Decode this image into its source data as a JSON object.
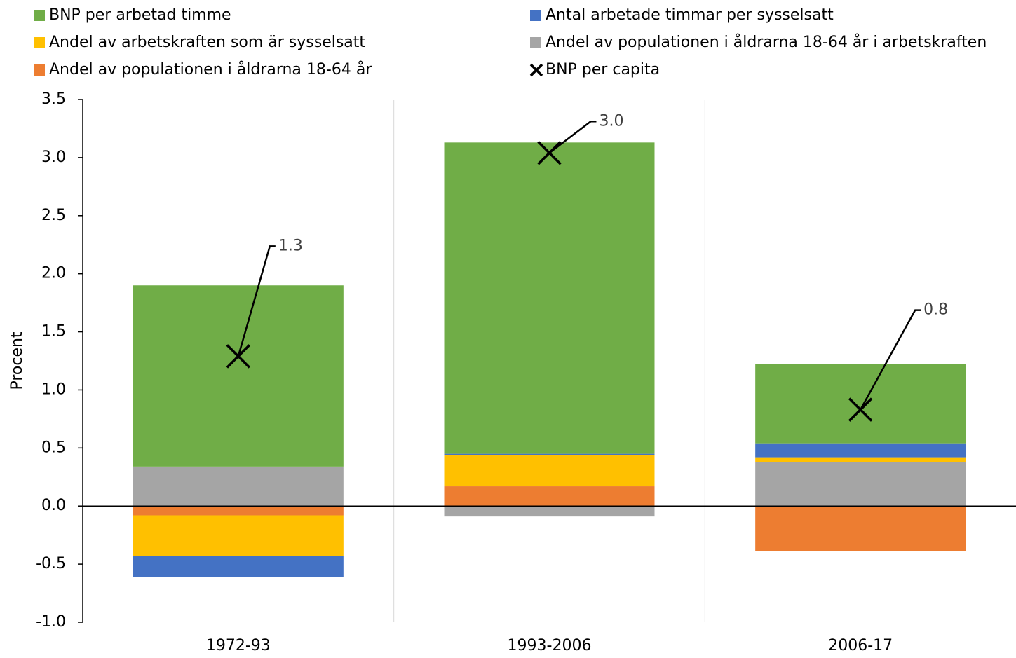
{
  "chart_data": {
    "type": "bar",
    "stacked": true,
    "ylabel": "Procent",
    "categories": [
      "1972-93",
      "1993-2006",
      "2006-17"
    ],
    "series": [
      {
        "name": "BNP per arbetad timme",
        "color": "#70ad47",
        "values": [
          1.56,
          2.68,
          0.68
        ]
      },
      {
        "name": "Antal arbetade timmar per sysselsatt",
        "color": "#4472c4",
        "values": [
          -0.18,
          0.01,
          0.12
        ]
      },
      {
        "name": "Andel av arbetskraften som är sysselsatt",
        "color": "#ffc000",
        "values": [
          -0.35,
          0.27,
          0.04
        ]
      },
      {
        "name": "Andel av populationen i åldrarna 18-64 år i arbetskraften",
        "color": "#a5a5a5",
        "values": [
          0.34,
          -0.09,
          0.38
        ]
      },
      {
        "name": "Andel av populationen i åldrarna 18-64 år",
        "color": "#ed7d31",
        "values": [
          -0.08,
          0.17,
          -0.39
        ]
      },
      {
        "name": "BNP per capita",
        "color": "#000000",
        "marker": "x",
        "values": [
          1.29,
          3.04,
          0.83
        ],
        "value_labels": [
          "1.3",
          "3.0",
          "0.8"
        ]
      }
    ],
    "ylim": [
      -1.0,
      3.5
    ],
    "yticks": [
      {
        "value": -1.0,
        "label": "-1.0"
      },
      -0.5,
      {
        "value": 0,
        "label": "0.0"
      },
      0.5,
      {
        "value": 1.0,
        "label": "1.0"
      },
      1.5,
      {
        "value": 2.0,
        "label": "2.0"
      },
      2.5,
      {
        "value": 3.0,
        "label": "3.0"
      },
      3.5
    ]
  }
}
